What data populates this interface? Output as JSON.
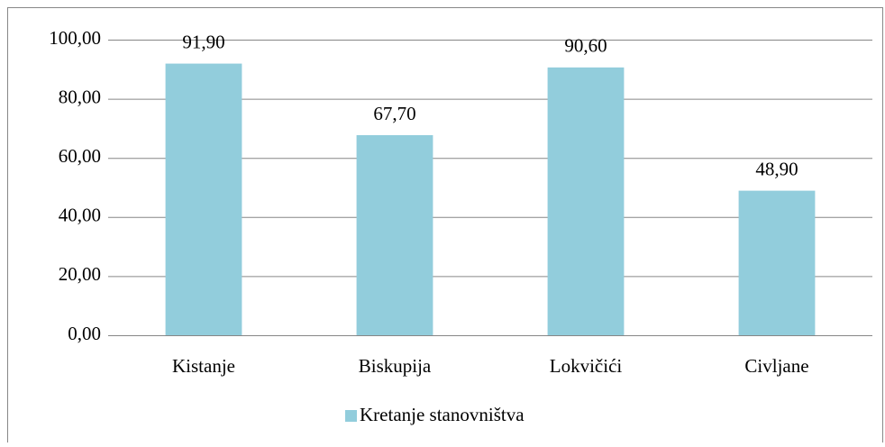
{
  "chart_data": {
    "type": "bar",
    "categories": [
      "Kistanje",
      "Biskupija",
      "Lokvičići",
      "Civljane"
    ],
    "series": [
      {
        "name": "Kretanje stanovništva",
        "color": "#92cddc",
        "values": [
          91.9,
          67.7,
          90.6,
          48.9
        ],
        "value_labels": [
          "91,90",
          "67,70",
          "90,60",
          "48,90"
        ]
      }
    ],
    "ylim": [
      0,
      100
    ],
    "yticks": [
      {
        "value": 0,
        "label": "0,00"
      },
      {
        "value": 20,
        "label": "20,00"
      },
      {
        "value": 40,
        "label": "40,00"
      },
      {
        "value": 60,
        "label": "60,00"
      },
      {
        "value": 80,
        "label": "80,00"
      },
      {
        "value": 100,
        "label": "100,00"
      }
    ],
    "grid": true,
    "legend": "bottom"
  }
}
